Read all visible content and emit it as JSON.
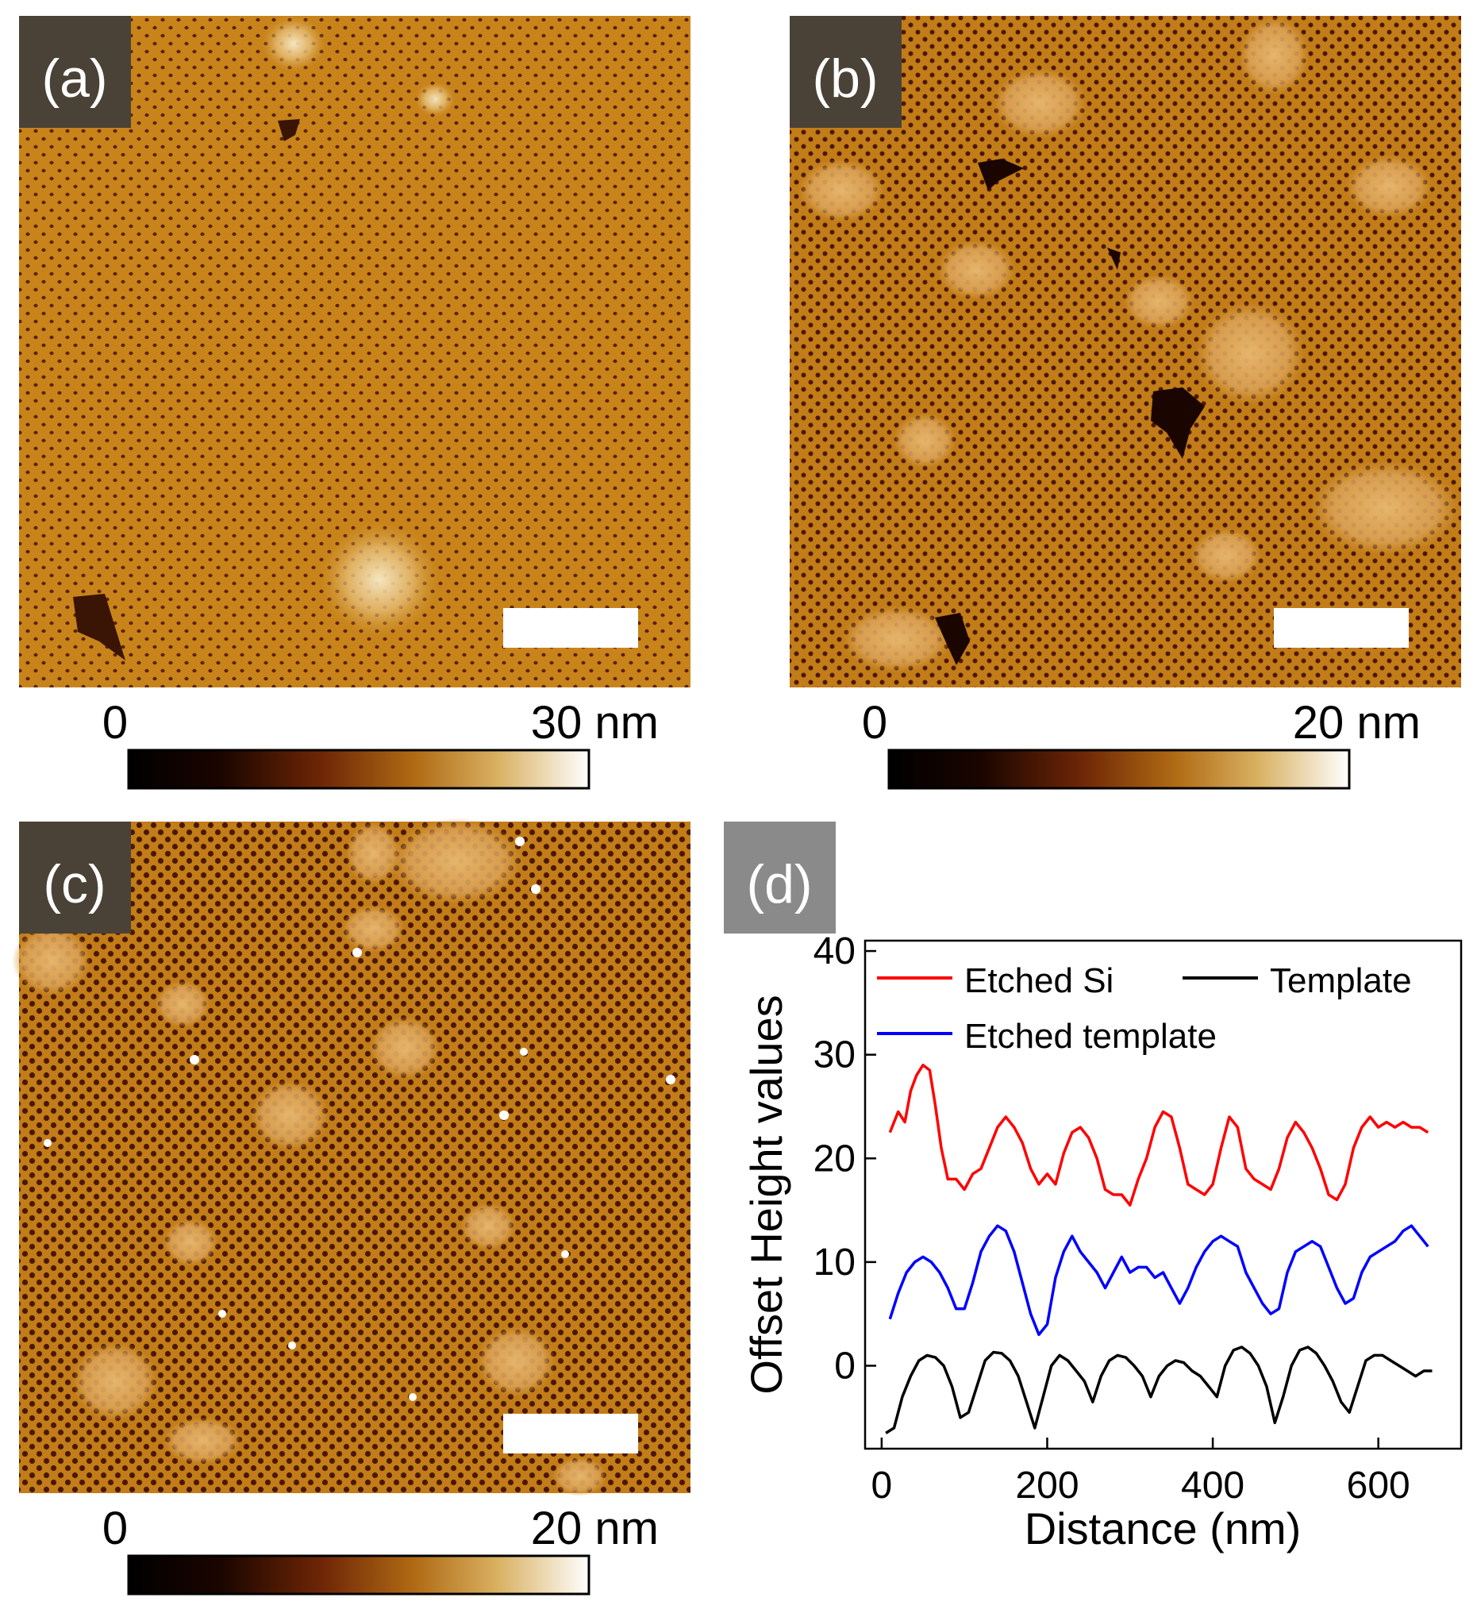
{
  "panels": [
    {
      "id": "a",
      "label": "(a)",
      "scale_min": "0",
      "scale_max": "30 nm",
      "variant": "a"
    },
    {
      "id": "b",
      "label": "(b)",
      "scale_min": "0",
      "scale_max": "20 nm",
      "variant": "b"
    },
    {
      "id": "c",
      "label": "(c)",
      "scale_min": "0",
      "scale_max": "20 nm",
      "variant": "c"
    }
  ],
  "colors": {
    "afm_base": "#c8841a",
    "afm_pore": "#5a2208",
    "afm_bright": "#f7ebc8",
    "label_box": "#4a4236",
    "label_box_d": "#8a8a8a",
    "scalebar": "#ffffff"
  },
  "chart_data": {
    "type": "line",
    "panel_label": "(d)",
    "xlabel": "Distance (nm)",
    "ylabel": "Offset Height values",
    "xlim": [
      -20,
      700
    ],
    "ylim": [
      -8,
      41
    ],
    "xticks": [
      0,
      200,
      400,
      600
    ],
    "yticks": [
      0,
      10,
      20,
      30,
      40
    ],
    "xtick_labels": [
      "0",
      "200",
      "400",
      "600"
    ],
    "ytick_labels": [
      "0",
      "10",
      "20",
      "30",
      "40"
    ],
    "legend": {
      "position": "top",
      "entries": [
        "Etched Si",
        "Template",
        "Etched template"
      ]
    },
    "series": [
      {
        "name": "Etched Si",
        "color": "#ff0000",
        "x": [
          10,
          20,
          28,
          35,
          42,
          50,
          58,
          65,
          72,
          80,
          90,
          100,
          110,
          120,
          130,
          140,
          150,
          160,
          170,
          180,
          190,
          200,
          210,
          220,
          230,
          240,
          250,
          260,
          270,
          280,
          290,
          300,
          310,
          320,
          330,
          340,
          350,
          360,
          370,
          380,
          390,
          400,
          410,
          420,
          430,
          440,
          450,
          460,
          470,
          480,
          490,
          500,
          510,
          520,
          530,
          540,
          550,
          560,
          570,
          580,
          590,
          600,
          610,
          620,
          630,
          640,
          650,
          660
        ],
        "y": [
          22.5,
          24.5,
          23.5,
          26.5,
          28,
          29,
          28.5,
          25,
          21,
          18,
          18,
          17,
          18.5,
          19,
          21,
          23,
          24,
          23,
          21.5,
          19,
          17.5,
          18.5,
          17.5,
          20.5,
          22.5,
          23,
          22,
          20,
          17,
          16.5,
          16.5,
          15.5,
          18,
          20,
          23,
          24.5,
          24,
          21,
          17.5,
          17,
          16.5,
          17.5,
          21,
          24,
          23,
          19,
          18,
          17.5,
          17,
          19,
          22,
          23.5,
          22.5,
          21,
          19,
          16.5,
          16,
          17.5,
          21,
          23,
          24,
          23,
          23.5,
          23,
          23.5,
          23,
          23,
          22.5
        ]
      },
      {
        "name": "Etched template",
        "color": "#0000ff",
        "x": [
          10,
          20,
          30,
          40,
          50,
          60,
          70,
          80,
          90,
          100,
          110,
          120,
          130,
          140,
          150,
          160,
          170,
          180,
          190,
          200,
          210,
          220,
          230,
          240,
          250,
          260,
          270,
          280,
          290,
          300,
          310,
          320,
          330,
          340,
          350,
          360,
          370,
          380,
          390,
          400,
          410,
          420,
          430,
          440,
          450,
          460,
          470,
          480,
          490,
          500,
          510,
          520,
          530,
          540,
          550,
          560,
          570,
          580,
          590,
          600,
          610,
          620,
          630,
          640,
          650,
          660
        ],
        "y": [
          4.5,
          7,
          9,
          10,
          10.5,
          10,
          9,
          7.5,
          5.5,
          5.5,
          8,
          11,
          12.5,
          13.5,
          13,
          11,
          8,
          5,
          3,
          4,
          8.5,
          11,
          12.5,
          11,
          10,
          9,
          7.5,
          9,
          10.5,
          9,
          9.5,
          9.5,
          8.5,
          9,
          7.5,
          6,
          7.5,
          9.5,
          11,
          12,
          12.5,
          12,
          11.5,
          9,
          7.5,
          6,
          5,
          5.5,
          9,
          11,
          11.5,
          12,
          11.5,
          9.5,
          7.5,
          6,
          6.5,
          9,
          10.5,
          11,
          11.5,
          12,
          13,
          13.5,
          12.5,
          11.5
        ]
      },
      {
        "name": "Template",
        "color": "#000000",
        "x": [
          5,
          15,
          25,
          35,
          45,
          55,
          65,
          75,
          85,
          95,
          105,
          115,
          125,
          135,
          145,
          155,
          165,
          175,
          185,
          195,
          205,
          215,
          225,
          235,
          245,
          255,
          265,
          275,
          285,
          295,
          305,
          315,
          325,
          335,
          345,
          355,
          365,
          375,
          385,
          395,
          405,
          415,
          425,
          435,
          445,
          455,
          465,
          475,
          485,
          495,
          505,
          515,
          525,
          535,
          545,
          555,
          565,
          575,
          585,
          595,
          605,
          615,
          625,
          635,
          645,
          655,
          665
        ],
        "y": [
          -6.5,
          -6,
          -3,
          -1,
          0.5,
          1,
          0.8,
          0,
          -2,
          -5,
          -4.5,
          -2,
          0.5,
          1.3,
          1.2,
          0.5,
          -1,
          -3.5,
          -6,
          -3,
          0,
          1,
          0.5,
          -0.5,
          -1.5,
          -3.5,
          -1,
          0.5,
          1,
          0.8,
          0,
          -1,
          -3,
          -1,
          0,
          0.5,
          0.3,
          -0.5,
          -1,
          -2,
          -3,
          0,
          1.5,
          1.8,
          1.2,
          0,
          -2,
          -5.5,
          -3,
          0,
          1.5,
          1.8,
          1.2,
          0,
          -1.5,
          -3.5,
          -4.5,
          -2,
          0.5,
          1,
          1,
          0.5,
          0,
          -0.5,
          -1,
          -0.5,
          -0.5
        ]
      }
    ]
  }
}
